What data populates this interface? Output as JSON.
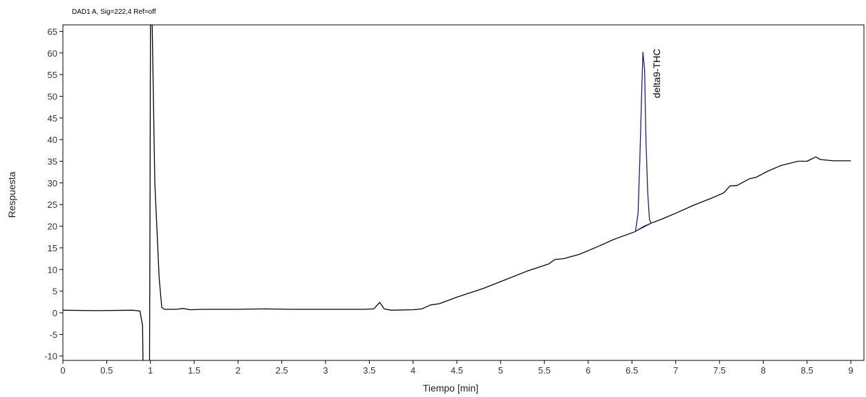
{
  "header": {
    "signal": "DAD1 A, Sig=222,4 Ref=off"
  },
  "chart_data": {
    "type": "line",
    "title": "",
    "xlabel": "Tiempo  [min]",
    "ylabel": "Respuesta",
    "xlim": [
      0,
      9.15
    ],
    "ylim": [
      -11,
      66.5
    ],
    "xticks": [
      "0",
      "0.5",
      "1",
      "1.5",
      "2",
      "2.5",
      "3",
      "3.5",
      "4",
      "4.5",
      "5",
      "5.5",
      "6",
      "6.5",
      "7",
      "7.5",
      "8",
      "8.5",
      "9"
    ],
    "yticks": [
      "65",
      "60",
      "55",
      "50",
      "45",
      "40",
      "35",
      "30",
      "25",
      "20",
      "15",
      "10",
      "5",
      "0",
      "-5",
      "-10"
    ],
    "grid": false,
    "series": [
      {
        "color": "#000000",
        "points": [
          [
            0,
            0.6
          ],
          [
            0.4,
            0.5
          ],
          [
            0.8,
            0.6
          ],
          [
            0.88,
            0.4
          ],
          [
            0.91,
            -3
          ],
          [
            0.915,
            -11.5
          ],
          [
            0.99,
            -11.5
          ],
          [
            0.995,
            20
          ],
          [
            1.0,
            66.5
          ],
          [
            1.02,
            66.5
          ],
          [
            1.05,
            30
          ],
          [
            1.1,
            8
          ],
          [
            1.13,
            1.2
          ],
          [
            1.16,
            0.8
          ],
          [
            1.3,
            0.8
          ],
          [
            1.37,
            1.0
          ],
          [
            1.45,
            0.7
          ],
          [
            1.6,
            0.8
          ],
          [
            1.8,
            0.8
          ],
          [
            2.0,
            0.8
          ],
          [
            2.3,
            0.9
          ],
          [
            2.6,
            0.8
          ],
          [
            2.9,
            0.8
          ],
          [
            3.2,
            0.8
          ],
          [
            3.45,
            0.8
          ],
          [
            3.55,
            0.9
          ],
          [
            3.62,
            2.4
          ],
          [
            3.67,
            0.9
          ],
          [
            3.75,
            0.6
          ],
          [
            4.0,
            0.7
          ],
          [
            4.1,
            0.9
          ],
          [
            4.2,
            1.8
          ],
          [
            4.3,
            2.1
          ],
          [
            4.5,
            3.6
          ],
          [
            4.8,
            5.6
          ],
          [
            5.0,
            7.2
          ],
          [
            5.3,
            9.6
          ],
          [
            5.55,
            11.3
          ],
          [
            5.62,
            12.3
          ],
          [
            5.72,
            12.5
          ],
          [
            5.9,
            13.5
          ],
          [
            6.1,
            15.2
          ],
          [
            6.3,
            17.0
          ],
          [
            6.53,
            18.7
          ],
          [
            6.58,
            19.3
          ],
          [
            6.64,
            20.0
          ],
          [
            6.72,
            20.7
          ],
          [
            6.85,
            21.7
          ],
          [
            7.0,
            23.0
          ],
          [
            7.2,
            24.8
          ],
          [
            7.4,
            26.4
          ],
          [
            7.55,
            27.7
          ],
          [
            7.62,
            29.3
          ],
          [
            7.7,
            29.4
          ],
          [
            7.8,
            30.5
          ],
          [
            7.85,
            31.0
          ],
          [
            7.92,
            31.3
          ],
          [
            8.05,
            32.7
          ],
          [
            8.2,
            34.0
          ],
          [
            8.4,
            35.0
          ],
          [
            8.5,
            35.0
          ],
          [
            8.6,
            36.0
          ],
          [
            8.65,
            35.4
          ],
          [
            8.8,
            35.1
          ],
          [
            9.0,
            35.1
          ]
        ]
      },
      {
        "name": "delta9-THC",
        "color": "#1a1a8a",
        "points": [
          [
            6.54,
            18.8
          ],
          [
            6.57,
            23
          ],
          [
            6.59,
            35
          ],
          [
            6.61,
            50
          ],
          [
            6.625,
            60.2
          ],
          [
            6.645,
            56
          ],
          [
            6.66,
            40
          ],
          [
            6.68,
            28
          ],
          [
            6.7,
            21.5
          ],
          [
            6.72,
            20.7
          ]
        ]
      },
      {
        "color": "#1a1a8a",
        "points": [
          [
            6.54,
            18.8
          ],
          [
            6.72,
            20.7
          ]
        ]
      }
    ],
    "annotations": [
      {
        "text": "delta9-THC",
        "x": 6.625,
        "y": 61
      }
    ]
  }
}
